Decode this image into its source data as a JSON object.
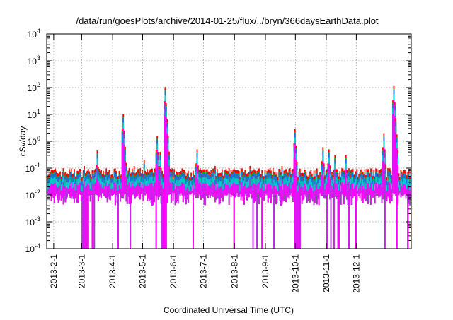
{
  "chart_data": {
    "type": "area",
    "title": "/data/run/goesPlots/archive/2014-01-25/flux/../bryn/366daysEarthData.plot",
    "xlabel": "Coordinated Universal Time (UTC)",
    "ylabel": "cSv/day",
    "y_scale": "log",
    "ylim": [
      0.0001,
      10000
    ],
    "xlim": [
      "2013-01-25",
      "2014-01-25"
    ],
    "grid": true,
    "legend": "none",
    "x_ticks": [
      "2013-2-1",
      "2013-3-1",
      "2013-4-1",
      "2013-5-1",
      "2013-6-1",
      "2013-7-1",
      "2013-8-1",
      "2013-9-1",
      "2013-10-1",
      "2013-11-1",
      "2013-12-1"
    ],
    "y_ticks": [
      {
        "value": 0.0001,
        "base": "10",
        "exp": "-4"
      },
      {
        "value": 0.001,
        "base": "10",
        "exp": "-3"
      },
      {
        "value": 0.01,
        "base": "10",
        "exp": "-2"
      },
      {
        "value": 0.1,
        "base": "10",
        "exp": "-1"
      },
      {
        "value": 1,
        "base": "10",
        "exp": "0"
      },
      {
        "value": 10,
        "base": "10",
        "exp": "1"
      },
      {
        "value": 100,
        "base": "10",
        "exp": "2"
      },
      {
        "value": 1000,
        "base": "10",
        "exp": "3"
      },
      {
        "value": 10000,
        "base": "10",
        "exp": "4"
      }
    ],
    "baseline": {
      "top_min": 0.045,
      "top_max": 0.1,
      "bottom_min": 0.004,
      "bottom_max": 0.012
    },
    "series": [
      {
        "color": "#ff0000",
        "level": 1.0
      },
      {
        "color": "#00c000",
        "level": 0.78
      },
      {
        "color": "#1e6fe6",
        "level": 0.72
      },
      {
        "color": "#00d0d0",
        "level": 0.5
      },
      {
        "color": "#ff00ff",
        "level": 0.3
      }
    ],
    "events": [
      {
        "date": "2013-02-10",
        "peak": 0.1
      },
      {
        "date": "2013-03-03",
        "peak": 0.12
      },
      {
        "date": "2013-03-16",
        "peak": 0.45
      },
      {
        "date": "2013-04-11",
        "peak": 10
      },
      {
        "date": "2013-04-22",
        "peak": 0.12
      },
      {
        "date": "2013-05-02",
        "peak": 0.2
      },
      {
        "date": "2013-05-15",
        "peak": 1.6
      },
      {
        "date": "2013-05-18",
        "peak": 0.4
      },
      {
        "date": "2013-05-23",
        "peak": 105
      },
      {
        "date": "2013-06-24",
        "peak": 0.5
      },
      {
        "date": "2013-07-12",
        "peak": 0.12
      },
      {
        "date": "2013-08-16",
        "peak": 0.12
      },
      {
        "date": "2013-09-17",
        "peak": 0.12
      },
      {
        "date": "2013-09-30",
        "peak": 2.8
      },
      {
        "date": "2013-10-28",
        "peak": 0.6
      },
      {
        "date": "2013-11-03",
        "peak": 0.5
      },
      {
        "date": "2013-11-09",
        "peak": 0.3
      },
      {
        "date": "2013-11-20",
        "peak": 0.3
      },
      {
        "date": "2013-12-28",
        "peak": 2
      },
      {
        "date": "2014-01-07",
        "peak": 115
      }
    ],
    "dropouts": [
      {
        "start": "2013-03-01",
        "end": "2013-03-07"
      },
      {
        "start": "2013-05-20",
        "end": "2013-05-24"
      },
      {
        "start": "2013-10-01",
        "end": "2013-10-05"
      }
    ]
  }
}
